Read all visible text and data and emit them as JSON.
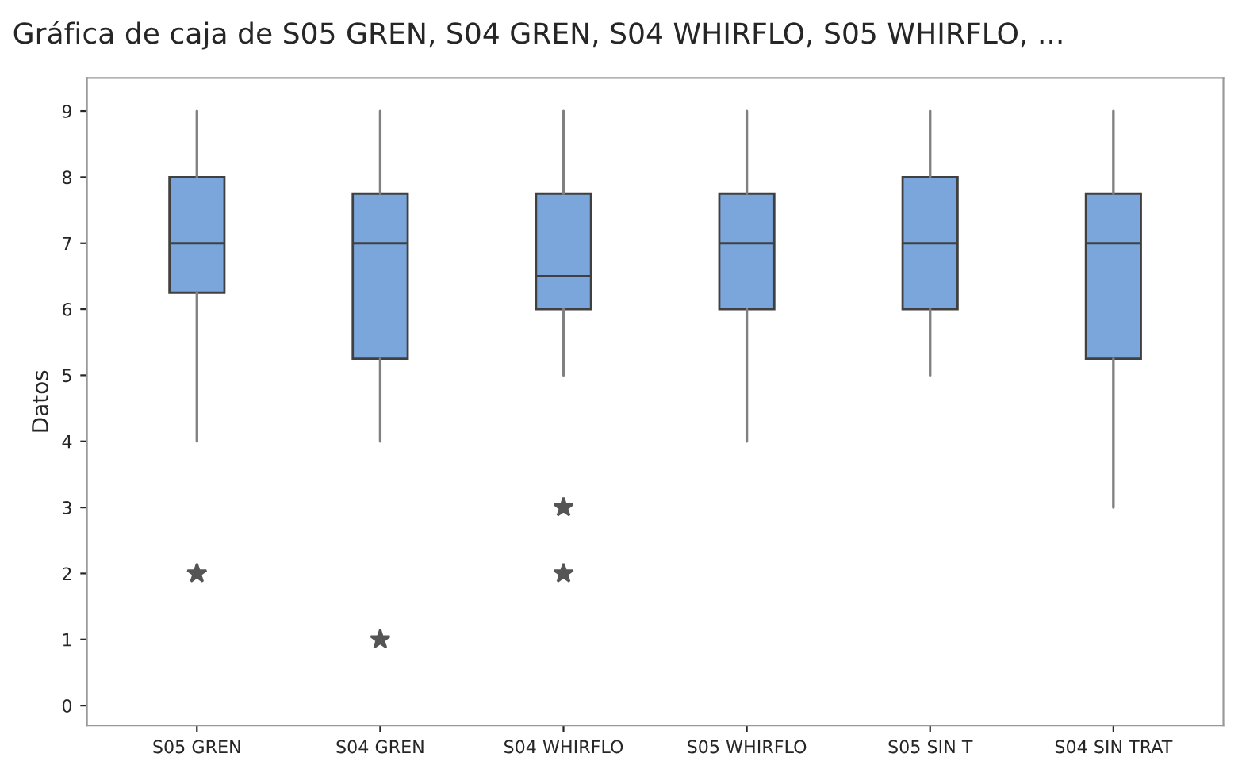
{
  "chart_data": {
    "type": "box",
    "title": "Gráfica de caja de S05 GREN, S04 GREN, S04 WHIRFLO, S05 WHIRFLO, ...",
    "ylabel": "Datos",
    "categories": [
      "S05 GREN",
      "S04 GREN",
      "S04 WHIRFLO",
      "S05 WHIRFLO",
      "S05 SIN T",
      "S04 SIN TRAT"
    ],
    "color": "#7aa6dc",
    "boxes": [
      {
        "low": 4,
        "q1": 6.25,
        "median": 7,
        "q3": 8,
        "high": 9,
        "outliers": [
          2
        ]
      },
      {
        "low": 4,
        "q1": 5.25,
        "median": 7,
        "q3": 7.75,
        "high": 9,
        "outliers": [
          1
        ]
      },
      {
        "low": 5,
        "q1": 6,
        "median": 6.5,
        "q3": 7.75,
        "high": 9,
        "outliers": [
          2,
          3
        ]
      },
      {
        "low": 4,
        "q1": 6,
        "median": 7,
        "q3": 7.75,
        "high": 9
      },
      {
        "low": 5,
        "q1": 6,
        "median": 7,
        "q3": 8,
        "high": 9
      },
      {
        "low": 3,
        "q1": 5.25,
        "median": 7,
        "q3": 7.75,
        "high": 9
      }
    ],
    "ylim": [
      -0.3,
      9.5
    ],
    "yticks": [
      0,
      1,
      2,
      3,
      4,
      5,
      6,
      7,
      8,
      9
    ],
    "grid": false,
    "legend": false,
    "marker": "star"
  }
}
